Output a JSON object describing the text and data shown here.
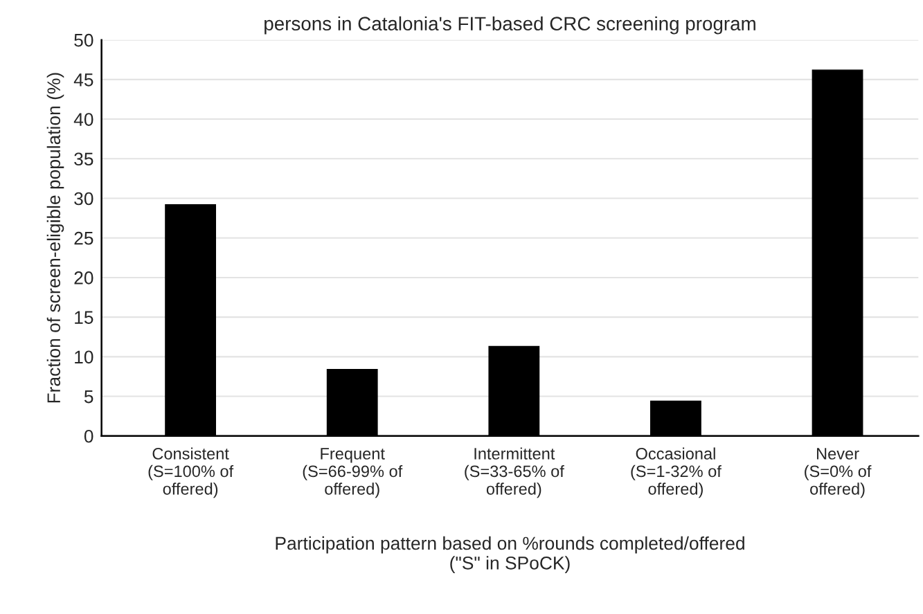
{
  "chart_data": {
    "type": "bar",
    "title": "persons in Catalonia's FIT-based CRC screening program",
    "categories": [
      "Consistent\n(S=100% of\noffered)",
      "Frequent\n(S=66-99% of\noffered)",
      "Intermittent\n(S=33-65% of\noffered)",
      "Occasional\n(S=1-32% of\noffered)",
      "Never\n(S=0% of\noffered)"
    ],
    "values": [
      29.2,
      8.4,
      11.3,
      4.4,
      46.2
    ],
    "color": "#000000",
    "xlabel": "Participation pattern based on %rounds completed/offered\n(\"S\" in SPoCK)",
    "ylabel": "Fraction of screen-eligible population (%)",
    "ylim": [
      0,
      50
    ],
    "yticks": [
      0,
      5,
      10,
      15,
      20,
      25,
      30,
      35,
      40,
      45,
      50
    ],
    "grid": "y"
  }
}
